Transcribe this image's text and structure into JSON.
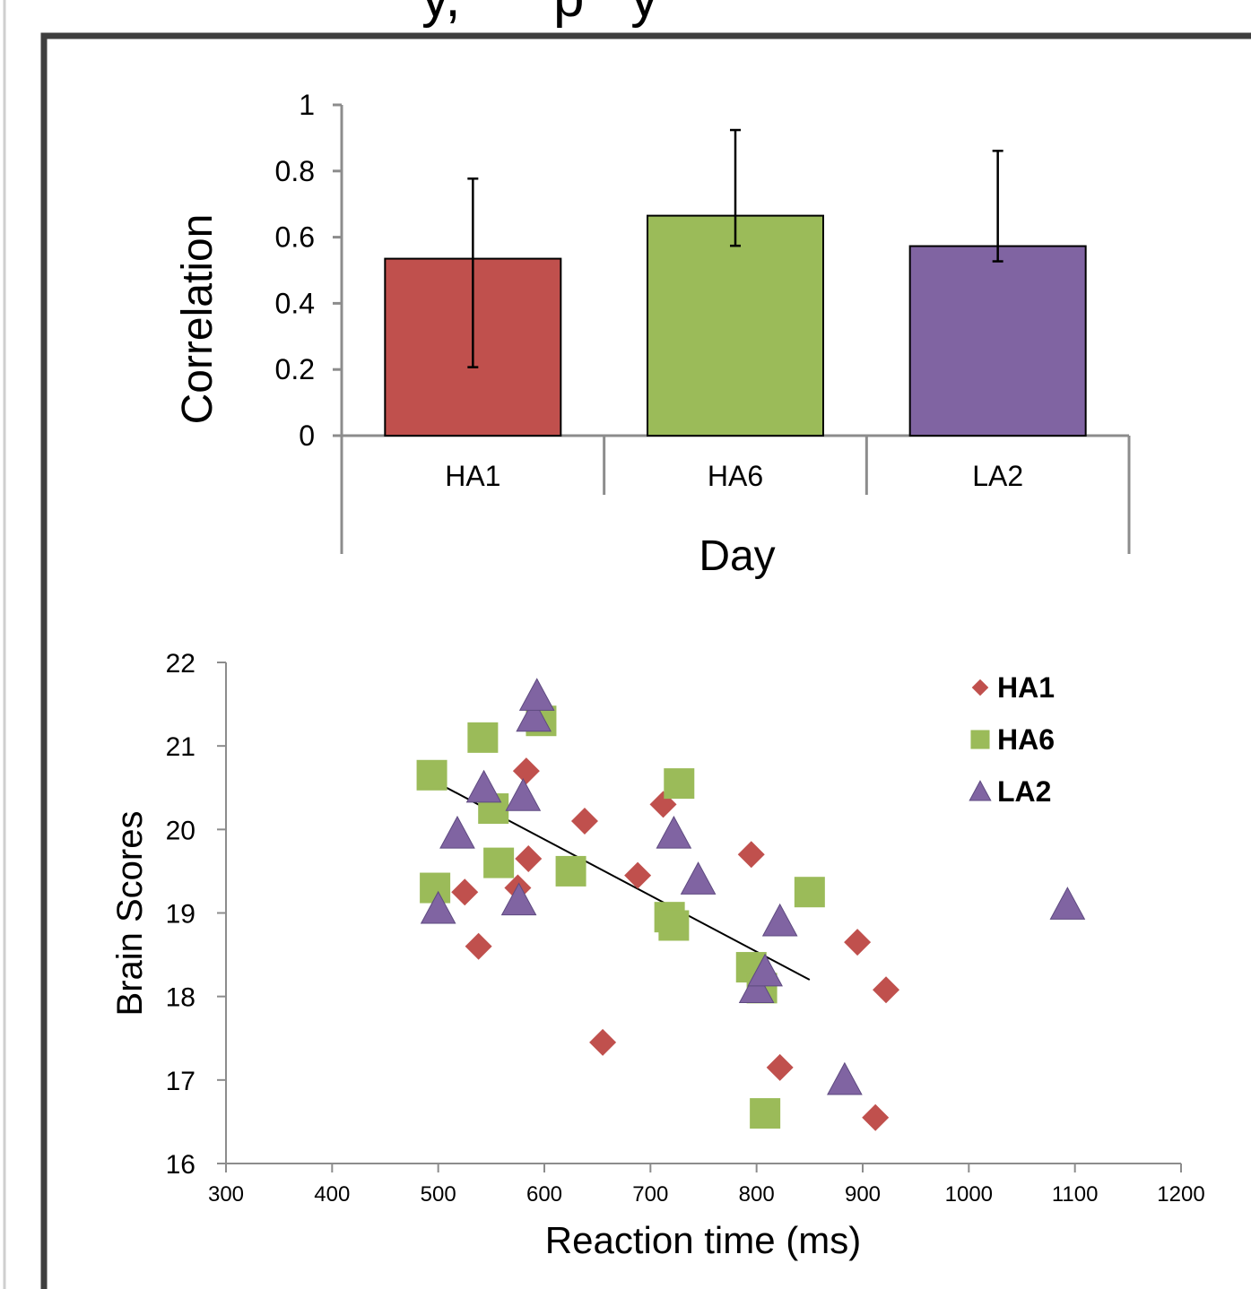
{
  "header": {
    "title_fragment": "y,      p   y"
  },
  "colors": {
    "HA1": "#c0504d",
    "HA6": "#9bbb59",
    "LA2": "#8064a2",
    "axis": "#8c8c8c",
    "frame": "#3f3f3f"
  },
  "chart_data": [
    {
      "type": "bar",
      "categories": [
        "HA1",
        "HA6",
        "LA2"
      ],
      "values": [
        0.535,
        0.665,
        0.573
      ],
      "error_low": [
        0.207,
        0.574,
        0.527
      ],
      "error_high": [
        0.777,
        0.924,
        0.861
      ],
      "xlabel": "Day",
      "ylabel": "Correlation",
      "ylim": [
        0,
        1
      ],
      "yticks": [
        "0",
        "0.2",
        "0.4",
        "0.6",
        "0.8",
        "1"
      ]
    },
    {
      "type": "scatter",
      "xlabel": "Reaction time (ms)",
      "ylabel": "Brain Scores",
      "xlim": [
        300,
        1200
      ],
      "ylim": [
        16,
        22
      ],
      "xticks": [
        "300",
        "400",
        "500",
        "600",
        "700",
        "800",
        "900",
        "1000",
        "1100",
        "1200"
      ],
      "yticks": [
        "16",
        "17",
        "18",
        "19",
        "20",
        "21",
        "22"
      ],
      "legend_position": "top-right",
      "series": [
        {
          "name": "HA1",
          "marker": "diamond",
          "points": [
            [
              525,
              19.25
            ],
            [
              538,
              18.6
            ],
            [
              575,
              19.3
            ],
            [
              583,
              20.7
            ],
            [
              585,
              19.65
            ],
            [
              638,
              20.1
            ],
            [
              655,
              17.45
            ],
            [
              688,
              19.45
            ],
            [
              712,
              20.3
            ],
            [
              795,
              19.7
            ],
            [
              822,
              17.15
            ],
            [
              895,
              18.65
            ],
            [
              912,
              16.55
            ],
            [
              922,
              18.08
            ]
          ]
        },
        {
          "name": "HA6",
          "marker": "square",
          "points": [
            [
              494,
              20.65
            ],
            [
              497,
              19.3
            ],
            [
              542,
              21.1
            ],
            [
              552,
              20.25
            ],
            [
              557,
              19.6
            ],
            [
              597,
              21.3
            ],
            [
              625,
              19.5
            ],
            [
              718,
              18.95
            ],
            [
              722,
              18.85
            ],
            [
              727,
              20.55
            ],
            [
              795,
              18.35
            ],
            [
              805,
              18.1
            ],
            [
              808,
              16.6
            ],
            [
              850,
              19.25
            ]
          ]
        },
        {
          "name": "LA2",
          "marker": "triangle",
          "points": [
            [
              500,
              19.05
            ],
            [
              518,
              19.95
            ],
            [
              543,
              20.5
            ],
            [
              576,
              19.15
            ],
            [
              580,
              20.4
            ],
            [
              590,
              21.35
            ],
            [
              593,
              21.6
            ],
            [
              722,
              19.95
            ],
            [
              745,
              19.4
            ],
            [
              800,
              18.1
            ],
            [
              808,
              18.3
            ],
            [
              822,
              18.9
            ],
            [
              883,
              17.0
            ],
            [
              1093,
              19.1
            ]
          ]
        }
      ],
      "trendline": {
        "x": [
          493,
          850
        ],
        "y": [
          20.6,
          18.2
        ]
      }
    }
  ]
}
